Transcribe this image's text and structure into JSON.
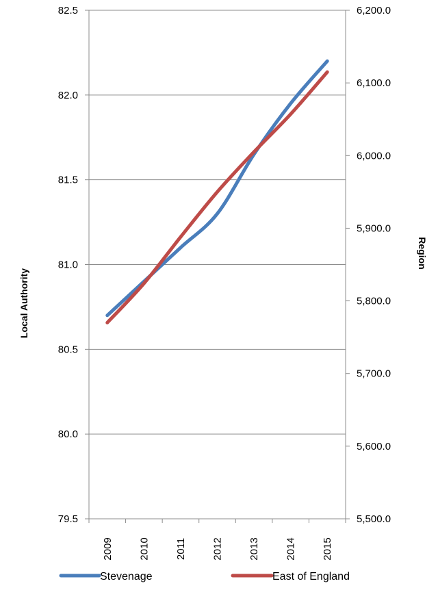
{
  "chart_data": {
    "type": "line",
    "categories": [
      "2009",
      "2010",
      "2011",
      "2012",
      "2013",
      "2014",
      "2015"
    ],
    "y_left": {
      "label": "Local Authority",
      "ticks": [
        "82.5",
        "82.0",
        "81.5",
        "81.0",
        "80.5",
        "80.0",
        "79.5"
      ],
      "range": [
        79.5,
        82.5
      ]
    },
    "y_right": {
      "label": "Region",
      "ticks": [
        "6,200.0",
        "6,100.0",
        "6,000.0",
        "5,900.0",
        "5,800.0",
        "5,700.0",
        "5,600.0",
        "5,500.0"
      ],
      "range": [
        5500,
        6200
      ]
    },
    "grid": true,
    "legend_position": "bottom",
    "series": [
      {
        "name": "Stevenage",
        "axis": "left",
        "color": "#4a7ebb",
        "values": [
          80.7,
          80.9,
          81.1,
          81.3,
          81.65,
          81.95,
          82.2
        ]
      },
      {
        "name": "East of England",
        "axis": "right",
        "color": "#be4b48",
        "values": [
          5770,
          5824,
          5888,
          5950,
          6005,
          6057,
          6115
        ]
      }
    ]
  }
}
